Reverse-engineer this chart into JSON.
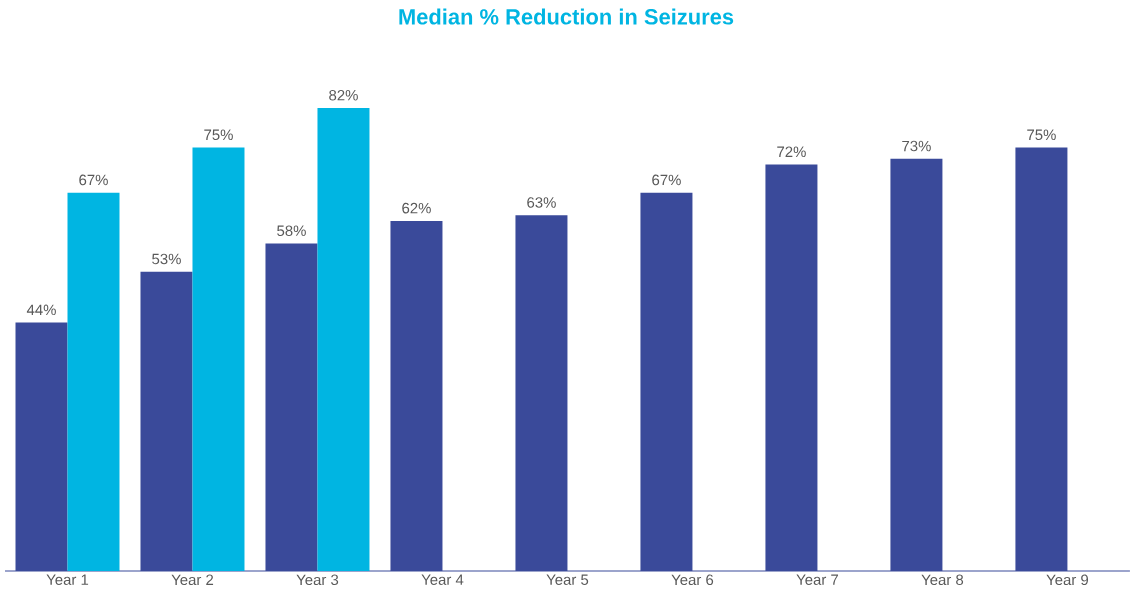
{
  "chart_data": {
    "type": "bar",
    "title": "Median % Reduction in Seizures",
    "categories": [
      "Year 1",
      "Year 2",
      "Year 3",
      "Year 4",
      "Year 5",
      "Year 6",
      "Year 7",
      "Year 8",
      "Year 9"
    ],
    "series": [
      {
        "color": "#3a4a9a",
        "values": [
          44,
          53,
          58,
          62,
          63,
          67,
          72,
          73,
          75
        ],
        "value_labels": [
          "44%",
          "53%",
          "58%",
          "62%",
          "63%",
          "67%",
          "72%",
          "73%",
          "75%"
        ]
      },
      {
        "color": "#00b5e2",
        "values": [
          67,
          75,
          82,
          null,
          null,
          null,
          null,
          null,
          null
        ],
        "value_labels": [
          "67%",
          "75%",
          "82%",
          null,
          null,
          null,
          null,
          null,
          null
        ]
      }
    ],
    "grid": false
  }
}
